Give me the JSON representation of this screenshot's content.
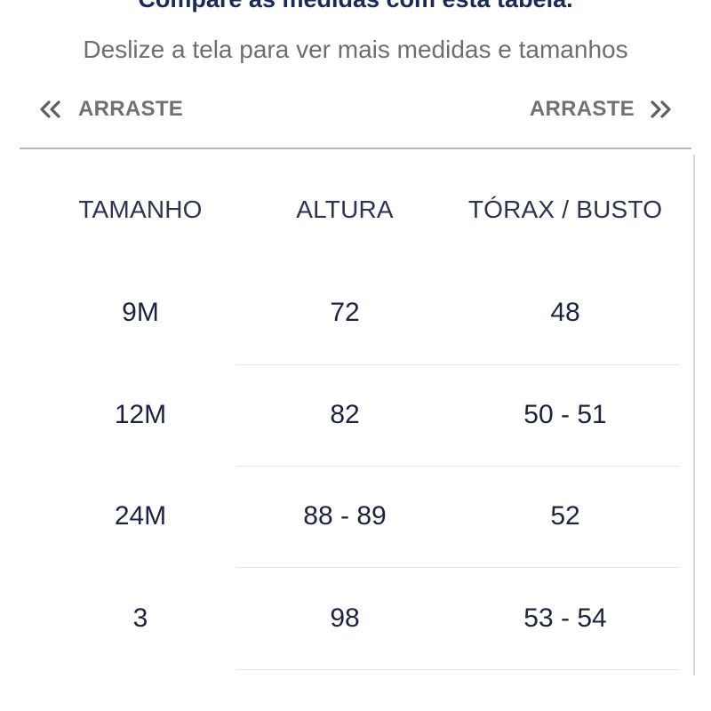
{
  "header": {
    "title": "Compare as medidas com esta tabela.",
    "subtitle": "Deslize a tela para ver mais medidas e tamanhos"
  },
  "nav": {
    "left": {
      "label": "ARRASTE",
      "icon": "double-chevron-left-icon"
    },
    "right": {
      "label": "ARRASTE",
      "icon": "double-chevron-right-icon"
    }
  },
  "colors": {
    "title": "#1b2a5a",
    "text": "#1c2340",
    "muted": "#717171",
    "divider": "#b9b9b9"
  },
  "table": {
    "columns": [
      "TAMANHO",
      "ALTURA",
      "TÓRAX / BUSTO"
    ],
    "rows": [
      [
        "9M",
        "72",
        "48"
      ],
      [
        "12M",
        "82",
        "50 - 51"
      ],
      [
        "24M",
        "88 - 89",
        "52"
      ],
      [
        "3",
        "98",
        "53 - 54"
      ]
    ]
  }
}
